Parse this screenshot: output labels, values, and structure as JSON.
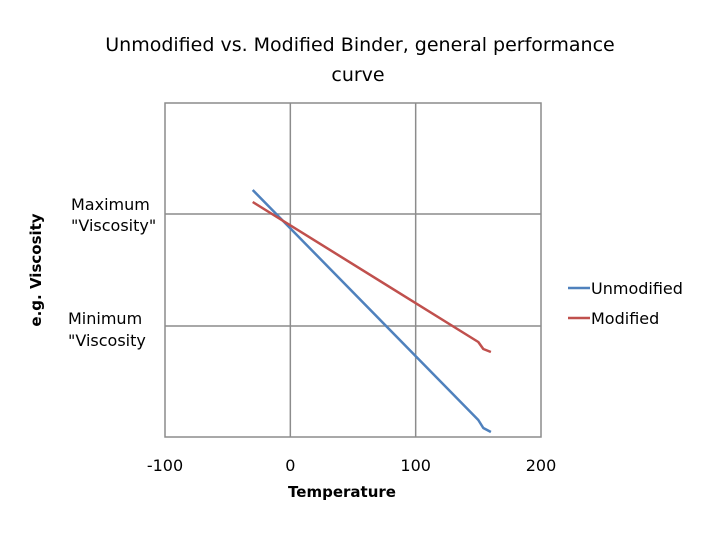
{
  "chart_data": {
    "type": "line",
    "title_lines": [
      "Unmodified vs. Modified Binder, general performance",
      "curve"
    ],
    "xlabel": "Temperature",
    "ylabel": "e.g. Viscosity",
    "xlim": [
      -100,
      200
    ],
    "x_ticks": [
      "-100",
      "0",
      "100",
      "200"
    ],
    "grid": true,
    "legend_position": "right",
    "annotations": {
      "maximum_lines": [
        "Maximum",
        "\"Viscosity\""
      ],
      "minimum_lines": [
        "Minimum",
        "\"Viscosity"
      ]
    },
    "series": [
      {
        "name": "Unmodified",
        "color": "#4F81BD",
        "points": [
          [
            -30,
            190
          ],
          [
            150,
            420
          ],
          [
            154,
            428
          ],
          [
            160,
            432
          ]
        ]
      },
      {
        "name": "Modified",
        "color": "#C0504D",
        "points": [
          [
            -30,
            202
          ],
          [
            150,
            342
          ],
          [
            154,
            349
          ],
          [
            160,
            352
          ]
        ]
      }
    ]
  }
}
